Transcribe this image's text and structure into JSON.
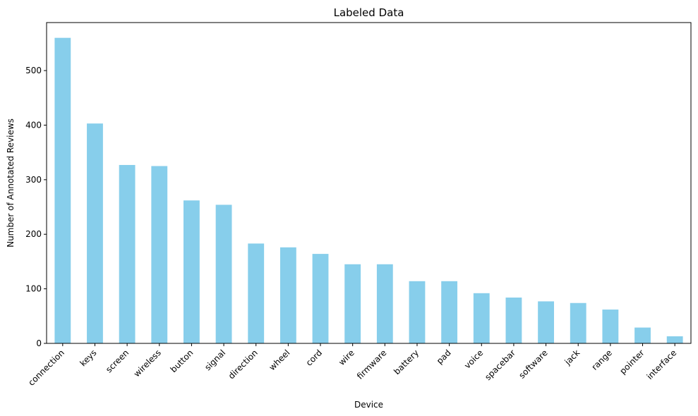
{
  "chart_data": {
    "type": "bar",
    "title": "Labeled Data",
    "xlabel": "Device",
    "ylabel": "Number of Annotated Reviews",
    "categories": [
      "connection",
      "keys",
      "screen",
      "wireless",
      "button",
      "signal",
      "direction",
      "wheel",
      "cord",
      "wire",
      "firmware",
      "battery",
      "pad",
      "voice",
      "spacebar",
      "software",
      "jack",
      "range",
      "pointer",
      "interface"
    ],
    "values": [
      560,
      403,
      327,
      325,
      262,
      254,
      183,
      176,
      164,
      145,
      145,
      114,
      114,
      92,
      84,
      77,
      74,
      62,
      29,
      13
    ],
    "ylim": [
      0,
      588
    ],
    "yticks": [
      0,
      100,
      200,
      300,
      400,
      500
    ],
    "bar_color": "#87CEEB",
    "grid": false,
    "legend": "none"
  }
}
